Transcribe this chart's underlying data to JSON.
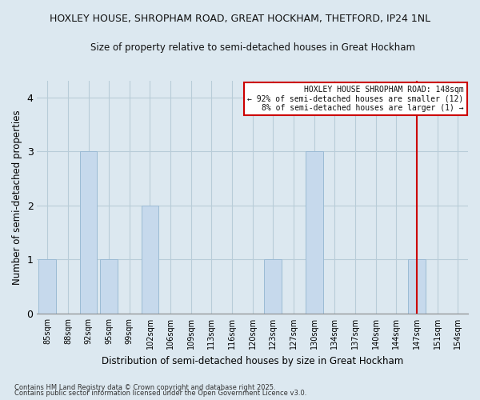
{
  "title": "HOXLEY HOUSE, SHROPHAM ROAD, GREAT HOCKHAM, THETFORD, IP24 1NL",
  "subtitle": "Size of property relative to semi-detached houses in Great Hockham",
  "xlabel": "Distribution of semi-detached houses by size in Great Hockham",
  "ylabel": "Number of semi-detached properties",
  "bar_labels": [
    "85sqm",
    "88sqm",
    "92sqm",
    "95sqm",
    "99sqm",
    "102sqm",
    "106sqm",
    "109sqm",
    "113sqm",
    "116sqm",
    "120sqm",
    "123sqm",
    "127sqm",
    "130sqm",
    "134sqm",
    "137sqm",
    "140sqm",
    "144sqm",
    "147sqm",
    "151sqm",
    "154sqm"
  ],
  "bar_values": [
    1,
    0,
    3,
    1,
    0,
    2,
    0,
    0,
    0,
    0,
    0,
    1,
    0,
    3,
    0,
    0,
    0,
    0,
    1,
    0,
    0
  ],
  "bar_color": "#c6d9ec",
  "bar_edge_color": "#9bbbd4",
  "ylim": [
    0,
    4.3
  ],
  "yticks": [
    0,
    1,
    2,
    3,
    4
  ],
  "property_line_x": 18,
  "property_line_color": "#cc0000",
  "legend_title": "HOXLEY HOUSE SHROPHAM ROAD: 148sqm",
  "legend_line1": "← 92% of semi-detached houses are smaller (12)",
  "legend_line2": "8% of semi-detached houses are larger (1) →",
  "footnote1": "Contains HM Land Registry data © Crown copyright and database right 2025.",
  "footnote2": "Contains public sector information licensed under the Open Government Licence v3.0.",
  "bg_color": "#dce8f0",
  "plot_bg_color": "#dce8f0",
  "grid_color": "#b8ccd8"
}
